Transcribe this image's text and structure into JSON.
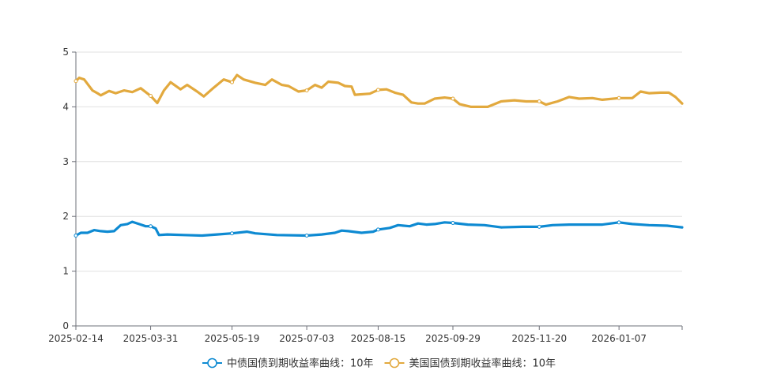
{
  "chart_data": {
    "type": "line",
    "title": "",
    "xlabel": "",
    "ylabel": "",
    "ylim": [
      0,
      5
    ],
    "y_ticks": [
      0,
      1,
      2,
      3,
      4,
      5
    ],
    "x_ticks": [
      "2025-02-14",
      "2025-03-31",
      "2025-05-19",
      "2025-07-03",
      "2025-08-15",
      "2025-09-29",
      "2025-11-20",
      "2026-01-07"
    ],
    "grid": "horizontal",
    "legend_position": "bottom",
    "series": [
      {
        "name": "中债国债到期收益率曲线：10年",
        "color": "#0e8ad2",
        "points": [
          [
            "2025-02-14",
            1.65
          ],
          [
            "2025-02-17",
            1.7
          ],
          [
            "2025-02-21",
            1.7
          ],
          [
            "2025-02-25",
            1.75
          ],
          [
            "2025-03-01",
            1.73
          ],
          [
            "2025-03-05",
            1.72
          ],
          [
            "2025-03-09",
            1.73
          ],
          [
            "2025-03-13",
            1.84
          ],
          [
            "2025-03-17",
            1.86
          ],
          [
            "2025-03-20",
            1.9
          ],
          [
            "2025-03-24",
            1.86
          ],
          [
            "2025-03-28",
            1.82
          ],
          [
            "2025-03-31",
            1.82
          ],
          [
            "2025-04-03",
            1.78
          ],
          [
            "2025-04-05",
            1.66
          ],
          [
            "2025-04-10",
            1.67
          ],
          [
            "2025-04-20",
            1.66
          ],
          [
            "2025-05-01",
            1.65
          ],
          [
            "2025-05-10",
            1.67
          ],
          [
            "2025-05-19",
            1.69
          ],
          [
            "2025-05-28",
            1.72
          ],
          [
            "2025-06-02",
            1.69
          ],
          [
            "2025-06-15",
            1.66
          ],
          [
            "2025-07-03",
            1.65
          ],
          [
            "2025-07-12",
            1.67
          ],
          [
            "2025-07-20",
            1.7
          ],
          [
            "2025-07-24",
            1.74
          ],
          [
            "2025-07-28",
            1.73
          ],
          [
            "2025-08-05",
            1.7
          ],
          [
            "2025-08-12",
            1.72
          ],
          [
            "2025-08-15",
            1.76
          ],
          [
            "2025-08-22",
            1.79
          ],
          [
            "2025-08-27",
            1.84
          ],
          [
            "2025-09-03",
            1.82
          ],
          [
            "2025-09-08",
            1.87
          ],
          [
            "2025-09-13",
            1.85
          ],
          [
            "2025-09-18",
            1.86
          ],
          [
            "2025-09-24",
            1.89
          ],
          [
            "2025-09-29",
            1.88
          ],
          [
            "2025-10-08",
            1.85
          ],
          [
            "2025-10-18",
            1.84
          ],
          [
            "2025-10-28",
            1.8
          ],
          [
            "2025-11-10",
            1.81
          ],
          [
            "2025-11-20",
            1.81
          ],
          [
            "2025-11-28",
            1.84
          ],
          [
            "2025-12-08",
            1.85
          ],
          [
            "2025-12-18",
            1.85
          ],
          [
            "2025-12-28",
            1.85
          ],
          [
            "2026-01-07",
            1.89
          ],
          [
            "2026-01-15",
            1.86
          ],
          [
            "2026-01-25",
            1.84
          ],
          [
            "2026-02-05",
            1.83
          ],
          [
            "2026-02-14",
            1.8
          ]
        ]
      },
      {
        "name": "美国国债到期收益率曲线：10年",
        "color": "#e2a93e",
        "points": [
          [
            "2025-02-14",
            4.47
          ],
          [
            "2025-02-16",
            4.53
          ],
          [
            "2025-02-19",
            4.5
          ],
          [
            "2025-02-24",
            4.3
          ],
          [
            "2025-02-27",
            4.25
          ],
          [
            "2025-03-01",
            4.21
          ],
          [
            "2025-03-06",
            4.29
          ],
          [
            "2025-03-10",
            4.25
          ],
          [
            "2025-03-15",
            4.3
          ],
          [
            "2025-03-20",
            4.27
          ],
          [
            "2025-03-25",
            4.34
          ],
          [
            "2025-03-28",
            4.27
          ],
          [
            "2025-03-31",
            4.2
          ],
          [
            "2025-04-04",
            4.07
          ],
          [
            "2025-04-08",
            4.3
          ],
          [
            "2025-04-12",
            4.45
          ],
          [
            "2025-04-18",
            4.32
          ],
          [
            "2025-04-22",
            4.4
          ],
          [
            "2025-04-28",
            4.28
          ],
          [
            "2025-05-02",
            4.19
          ],
          [
            "2025-05-08",
            4.35
          ],
          [
            "2025-05-14",
            4.5
          ],
          [
            "2025-05-19",
            4.45
          ],
          [
            "2025-05-22",
            4.58
          ],
          [
            "2025-05-26",
            4.5
          ],
          [
            "2025-06-02",
            4.44
          ],
          [
            "2025-06-08",
            4.4
          ],
          [
            "2025-06-12",
            4.5
          ],
          [
            "2025-06-18",
            4.4
          ],
          [
            "2025-06-22",
            4.38
          ],
          [
            "2025-06-28",
            4.28
          ],
          [
            "2025-07-03",
            4.3
          ],
          [
            "2025-07-08",
            4.4
          ],
          [
            "2025-07-12",
            4.35
          ],
          [
            "2025-07-16",
            4.46
          ],
          [
            "2025-07-22",
            4.44
          ],
          [
            "2025-07-26",
            4.38
          ],
          [
            "2025-07-30",
            4.37
          ],
          [
            "2025-08-01",
            4.22
          ],
          [
            "2025-08-10",
            4.24
          ],
          [
            "2025-08-15",
            4.31
          ],
          [
            "2025-08-20",
            4.32
          ],
          [
            "2025-08-25",
            4.26
          ],
          [
            "2025-08-30",
            4.22
          ],
          [
            "2025-09-04",
            4.08
          ],
          [
            "2025-09-08",
            4.06
          ],
          [
            "2025-09-12",
            4.06
          ],
          [
            "2025-09-18",
            4.15
          ],
          [
            "2025-09-24",
            4.17
          ],
          [
            "2025-09-29",
            4.15
          ],
          [
            "2025-10-03",
            4.05
          ],
          [
            "2025-10-10",
            4.0
          ],
          [
            "2025-10-20",
            4.0
          ],
          [
            "2025-10-28",
            4.1
          ],
          [
            "2025-11-05",
            4.12
          ],
          [
            "2025-11-12",
            4.1
          ],
          [
            "2025-11-20",
            4.1
          ],
          [
            "2025-11-24",
            4.04
          ],
          [
            "2025-12-01",
            4.1
          ],
          [
            "2025-12-08",
            4.18
          ],
          [
            "2025-12-14",
            4.15
          ],
          [
            "2025-12-22",
            4.16
          ],
          [
            "2025-12-28",
            4.13
          ],
          [
            "2026-01-07",
            4.16
          ],
          [
            "2026-01-15",
            4.16
          ],
          [
            "2026-01-20",
            4.28
          ],
          [
            "2026-01-25",
            4.25
          ],
          [
            "2026-02-01",
            4.26
          ],
          [
            "2026-02-06",
            4.26
          ],
          [
            "2026-02-10",
            4.18
          ],
          [
            "2026-02-14",
            4.06
          ]
        ]
      }
    ]
  }
}
